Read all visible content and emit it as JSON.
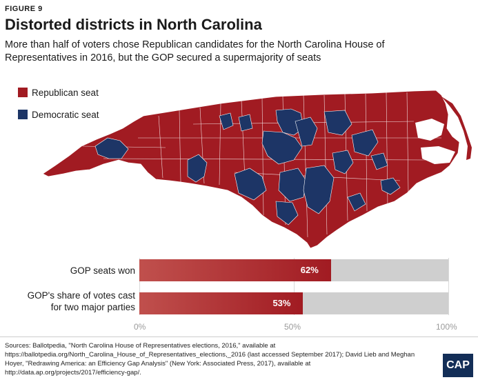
{
  "header": {
    "figure_label": "FIGURE 9",
    "title": "Distorted districts in North Carolina",
    "subtitle": "More than half of voters chose Republican candidates for the North Carolina House of Representatives in 2016, but the GOP secured a supermajority of seats"
  },
  "legend": {
    "items": [
      {
        "label": "Republican seat",
        "color": "#a11b22"
      },
      {
        "label": "Democratic seat",
        "color": "#1d3566"
      }
    ]
  },
  "map": {
    "region": "North Carolina",
    "republican_color": "#a11b22",
    "democratic_color": "#1d3566",
    "boundary_color": "#ffffff"
  },
  "chart_data": {
    "type": "bar",
    "orientation": "horizontal",
    "categories": [
      "GOP seats won",
      "GOP's share of votes cast for two major parties"
    ],
    "values": [
      62,
      53
    ],
    "value_labels": [
      "62%",
      "53%"
    ],
    "xlim": [
      0,
      100
    ],
    "x_ticks": [
      "0%",
      "50%",
      "100%"
    ],
    "grid": true,
    "title": "",
    "xlabel": "",
    "ylabel": ""
  },
  "bars": {
    "label_1": "GOP seats won",
    "label_2_line1": "GOP's share of votes cast",
    "label_2_line2": "for two major parties",
    "value_1": "62%",
    "value_2": "53%"
  },
  "footer": {
    "sources": "Sources: Ballotpedia, \"North Carolina House of Representatives elections, 2016,\" available at https://ballotpedia.org/North_Carolina_House_of_Representatives_elections,_2016 (last accessed September 2017); David Lieb and Meghan Hoyer, \"Redrawing America: an Efficiency Gap Analysis\" (New York: Associated Press, 2017), available at http://data.ap.org/projects/2017/efficiency-gap/.",
    "logo_text": "CAP"
  }
}
